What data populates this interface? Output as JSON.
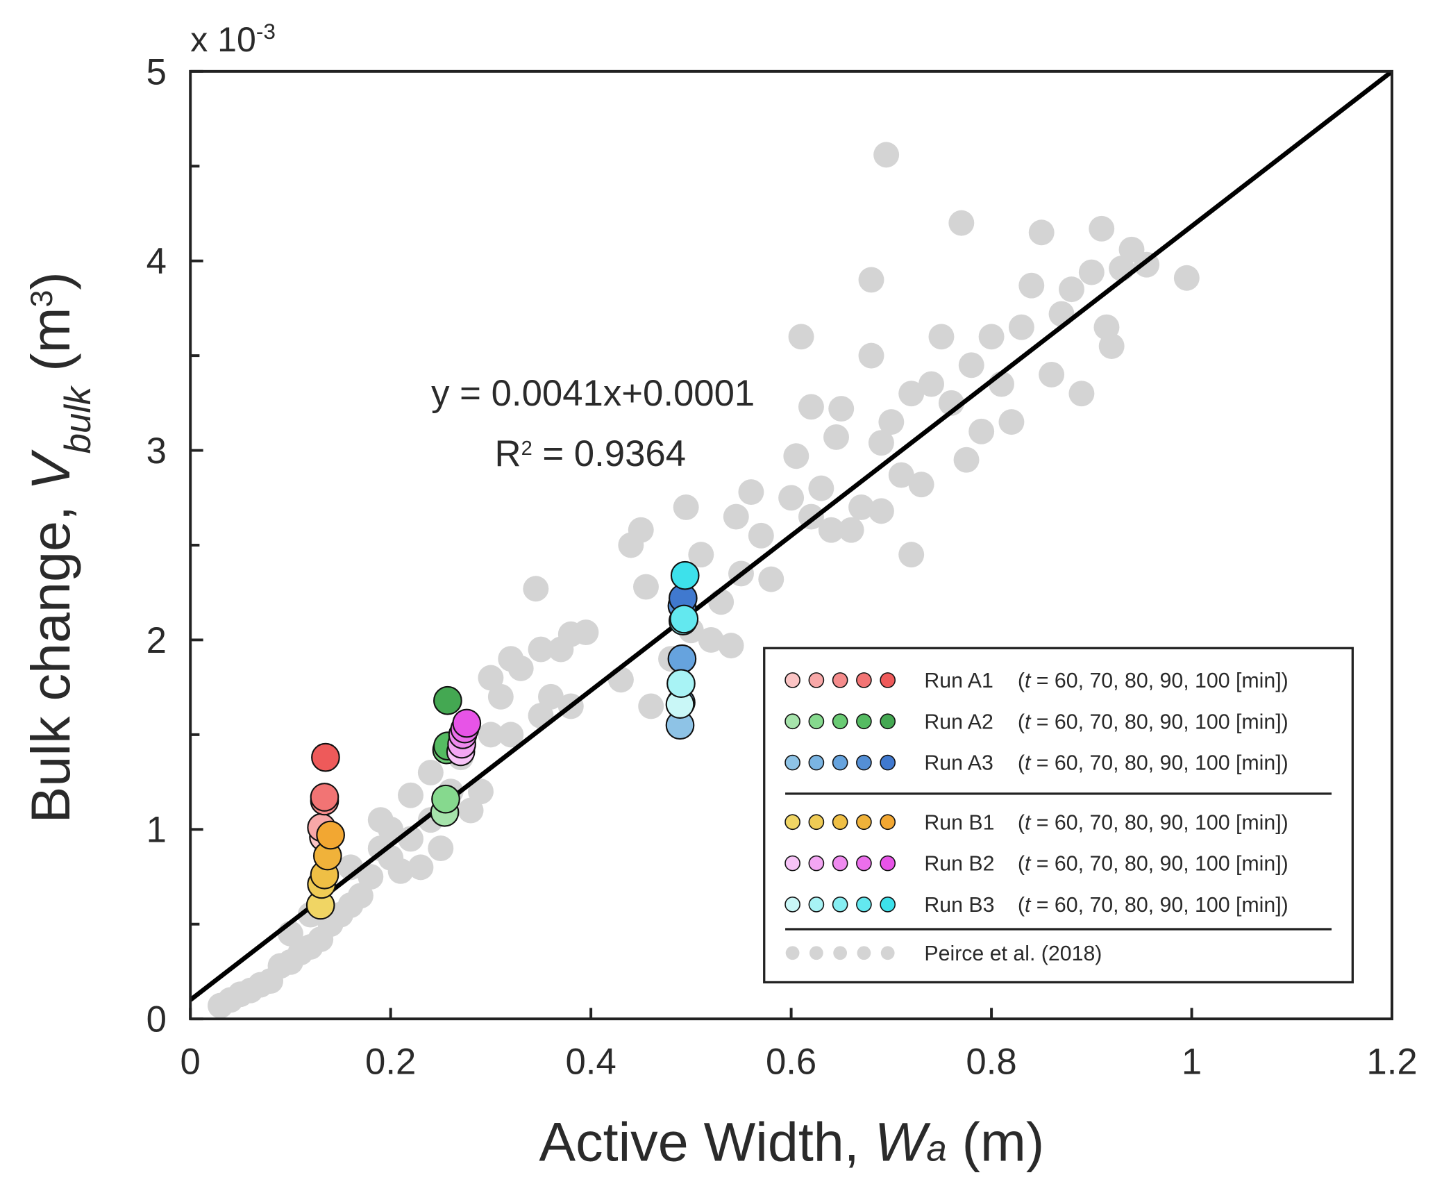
{
  "chart_data": {
    "type": "scatter",
    "multiplier": {
      "base": "x 10",
      "exp": "-3"
    },
    "x_label": {
      "text": "Active Width, ",
      "var": "W",
      "sub": "a",
      "unit": " (m)"
    },
    "y_label": {
      "text": "Bulk change, ",
      "var": "V",
      "sub": "bulk",
      "unit": " (m",
      "exp": "3",
      "close": ")"
    },
    "annotation": {
      "equation": "y = 0.0041x+0.0001",
      "r2": {
        "base": "R",
        "exp": "2",
        "rest": " = 0.9364"
      }
    },
    "xlim": [
      0,
      1.2
    ],
    "xticks": [
      0,
      0.2,
      0.4,
      0.6,
      0.8,
      1,
      1.2
    ],
    "ylim": [
      0,
      5
    ],
    "yticks": [
      0,
      1,
      2,
      3,
      4,
      5
    ],
    "yminorticks": [
      0.5,
      1.5,
      2.5,
      3.5,
      4.5
    ],
    "fit": {
      "color": "#000000",
      "x": [
        0,
        1.2
      ],
      "y": [
        0.1,
        5
      ]
    },
    "series": [
      {
        "name": "Run A1",
        "note": {
          "open": "(",
          "var": "t",
          "rest": " = 60, 70, 80, 90, 100 [min])"
        },
        "colors": [
          "#fbc4c4",
          "#f8a8a8",
          "#f58c8c",
          "#f27474",
          "#ee5a5a"
        ],
        "x": [
          0.133,
          0.131,
          0.134,
          0.134,
          0.135
        ],
        "y": [
          0.96,
          1.01,
          1.15,
          1.17,
          1.38
        ]
      },
      {
        "name": "Run A2",
        "note": {
          "open": "(",
          "var": "t",
          "rest": " = 60, 70, 80, 90, 100 [min])"
        },
        "colors": [
          "#a6e3ab",
          "#86d98e",
          "#6acb74",
          "#55bb62",
          "#44a852"
        ],
        "x": [
          0.254,
          0.255,
          0.256,
          0.257,
          0.257
        ],
        "y": [
          1.09,
          1.16,
          1.42,
          1.44,
          1.68
        ]
      },
      {
        "name": "Run A3",
        "note": {
          "open": "(",
          "var": "t",
          "rest": " = 60, 70, 80, 90, 100 [min])"
        },
        "colors": [
          "#8ec3e6",
          "#7ab4e2",
          "#66a3de",
          "#548fd6",
          "#4079cf"
        ],
        "x": [
          0.489,
          0.49,
          0.491,
          0.491,
          0.492
        ],
        "y": [
          1.55,
          1.67,
          1.9,
          2.18,
          2.22
        ]
      },
      {
        "name": "Run B1",
        "note": {
          "open": "(",
          "var": "t",
          "rest": " = 60, 70, 80, 90, 100 [min])"
        },
        "colors": [
          "#f0d564",
          "#efcb55",
          "#efbf45",
          "#f0b23a",
          "#f2a732"
        ],
        "x": [
          0.13,
          0.131,
          0.134,
          0.137,
          0.14
        ],
        "y": [
          0.6,
          0.71,
          0.76,
          0.86,
          0.97
        ]
      },
      {
        "name": "Run B2",
        "note": {
          "open": "(",
          "var": "t",
          "rest": " = 60, 70, 80, 90, 100 [min])"
        },
        "colors": [
          "#f7c3f7",
          "#f3a6f3",
          "#ef8aef",
          "#ec6fec",
          "#e754e7"
        ],
        "x": [
          0.27,
          0.271,
          0.272,
          0.274,
          0.276
        ],
        "y": [
          1.41,
          1.45,
          1.5,
          1.53,
          1.56
        ]
      },
      {
        "name": "Run B3",
        "note": {
          "open": "(",
          "var": "t",
          "rest": " = 60, 70, 80, 90, 100 [min])"
        },
        "colors": [
          "#c9f7f7",
          "#a8f3f5",
          "#86eef2",
          "#63e8ef",
          "#3de1eb"
        ],
        "x": [
          0.489,
          0.49,
          0.492,
          0.493,
          0.494
        ],
        "y": [
          1.66,
          1.77,
          2.1,
          2.11,
          2.34
        ]
      },
      {
        "name": "Peirce et al. (2018)",
        "color": "#d4d4d4",
        "x": [
          0.03,
          0.04,
          0.05,
          0.06,
          0.07,
          0.08,
          0.09,
          0.1,
          0.1,
          0.11,
          0.12,
          0.12,
          0.13,
          0.14,
          0.15,
          0.16,
          0.16,
          0.17,
          0.18,
          0.19,
          0.19,
          0.2,
          0.2,
          0.21,
          0.22,
          0.22,
          0.23,
          0.24,
          0.24,
          0.25,
          0.26,
          0.27,
          0.28,
          0.29,
          0.3,
          0.3,
          0.31,
          0.32,
          0.32,
          0.33,
          0.345,
          0.35,
          0.35,
          0.36,
          0.37,
          0.38,
          0.38,
          0.395,
          0.43,
          0.44,
          0.45,
          0.455,
          0.46,
          0.48,
          0.495,
          0.5,
          0.51,
          0.52,
          0.53,
          0.54,
          0.545,
          0.55,
          0.56,
          0.57,
          0.58,
          0.6,
          0.605,
          0.61,
          0.62,
          0.62,
          0.63,
          0.64,
          0.645,
          0.65,
          0.66,
          0.67,
          0.68,
          0.68,
          0.69,
          0.69,
          0.695,
          0.7,
          0.71,
          0.72,
          0.72,
          0.73,
          0.74,
          0.75,
          0.76,
          0.77,
          0.775,
          0.78,
          0.79,
          0.8,
          0.81,
          0.82,
          0.83,
          0.84,
          0.85,
          0.86,
          0.87,
          0.88,
          0.89,
          0.9,
          0.91,
          0.915,
          0.92,
          0.93,
          0.94,
          0.955,
          0.995
        ],
        "y": [
          0.07,
          0.1,
          0.13,
          0.15,
          0.18,
          0.2,
          0.28,
          0.3,
          0.45,
          0.35,
          0.38,
          0.55,
          0.42,
          0.5,
          0.55,
          0.6,
          0.8,
          0.65,
          0.75,
          0.9,
          1.05,
          0.85,
          1.0,
          0.78,
          1.18,
          0.95,
          0.8,
          1.05,
          1.3,
          0.9,
          1.2,
          1.38,
          1.1,
          1.2,
          1.5,
          1.8,
          1.7,
          1.9,
          1.5,
          1.85,
          2.27,
          1.95,
          1.6,
          1.7,
          1.95,
          1.65,
          2.03,
          2.04,
          1.79,
          2.5,
          2.58,
          2.28,
          1.65,
          1.9,
          2.7,
          2.05,
          2.45,
          2.0,
          2.2,
          1.97,
          2.65,
          2.35,
          2.78,
          2.55,
          2.32,
          2.75,
          2.97,
          3.6,
          2.65,
          3.23,
          2.8,
          2.58,
          3.07,
          3.22,
          2.58,
          2.7,
          3.5,
          3.9,
          2.68,
          3.04,
          4.56,
          3.15,
          2.87,
          2.45,
          3.3,
          2.82,
          3.35,
          3.6,
          3.25,
          4.2,
          2.95,
          3.45,
          3.1,
          3.6,
          3.35,
          3.15,
          3.65,
          3.87,
          4.15,
          3.4,
          3.72,
          3.85,
          3.3,
          3.94,
          4.17,
          3.65,
          3.55,
          3.96,
          4.06,
          3.98,
          3.91
        ]
      }
    ]
  }
}
